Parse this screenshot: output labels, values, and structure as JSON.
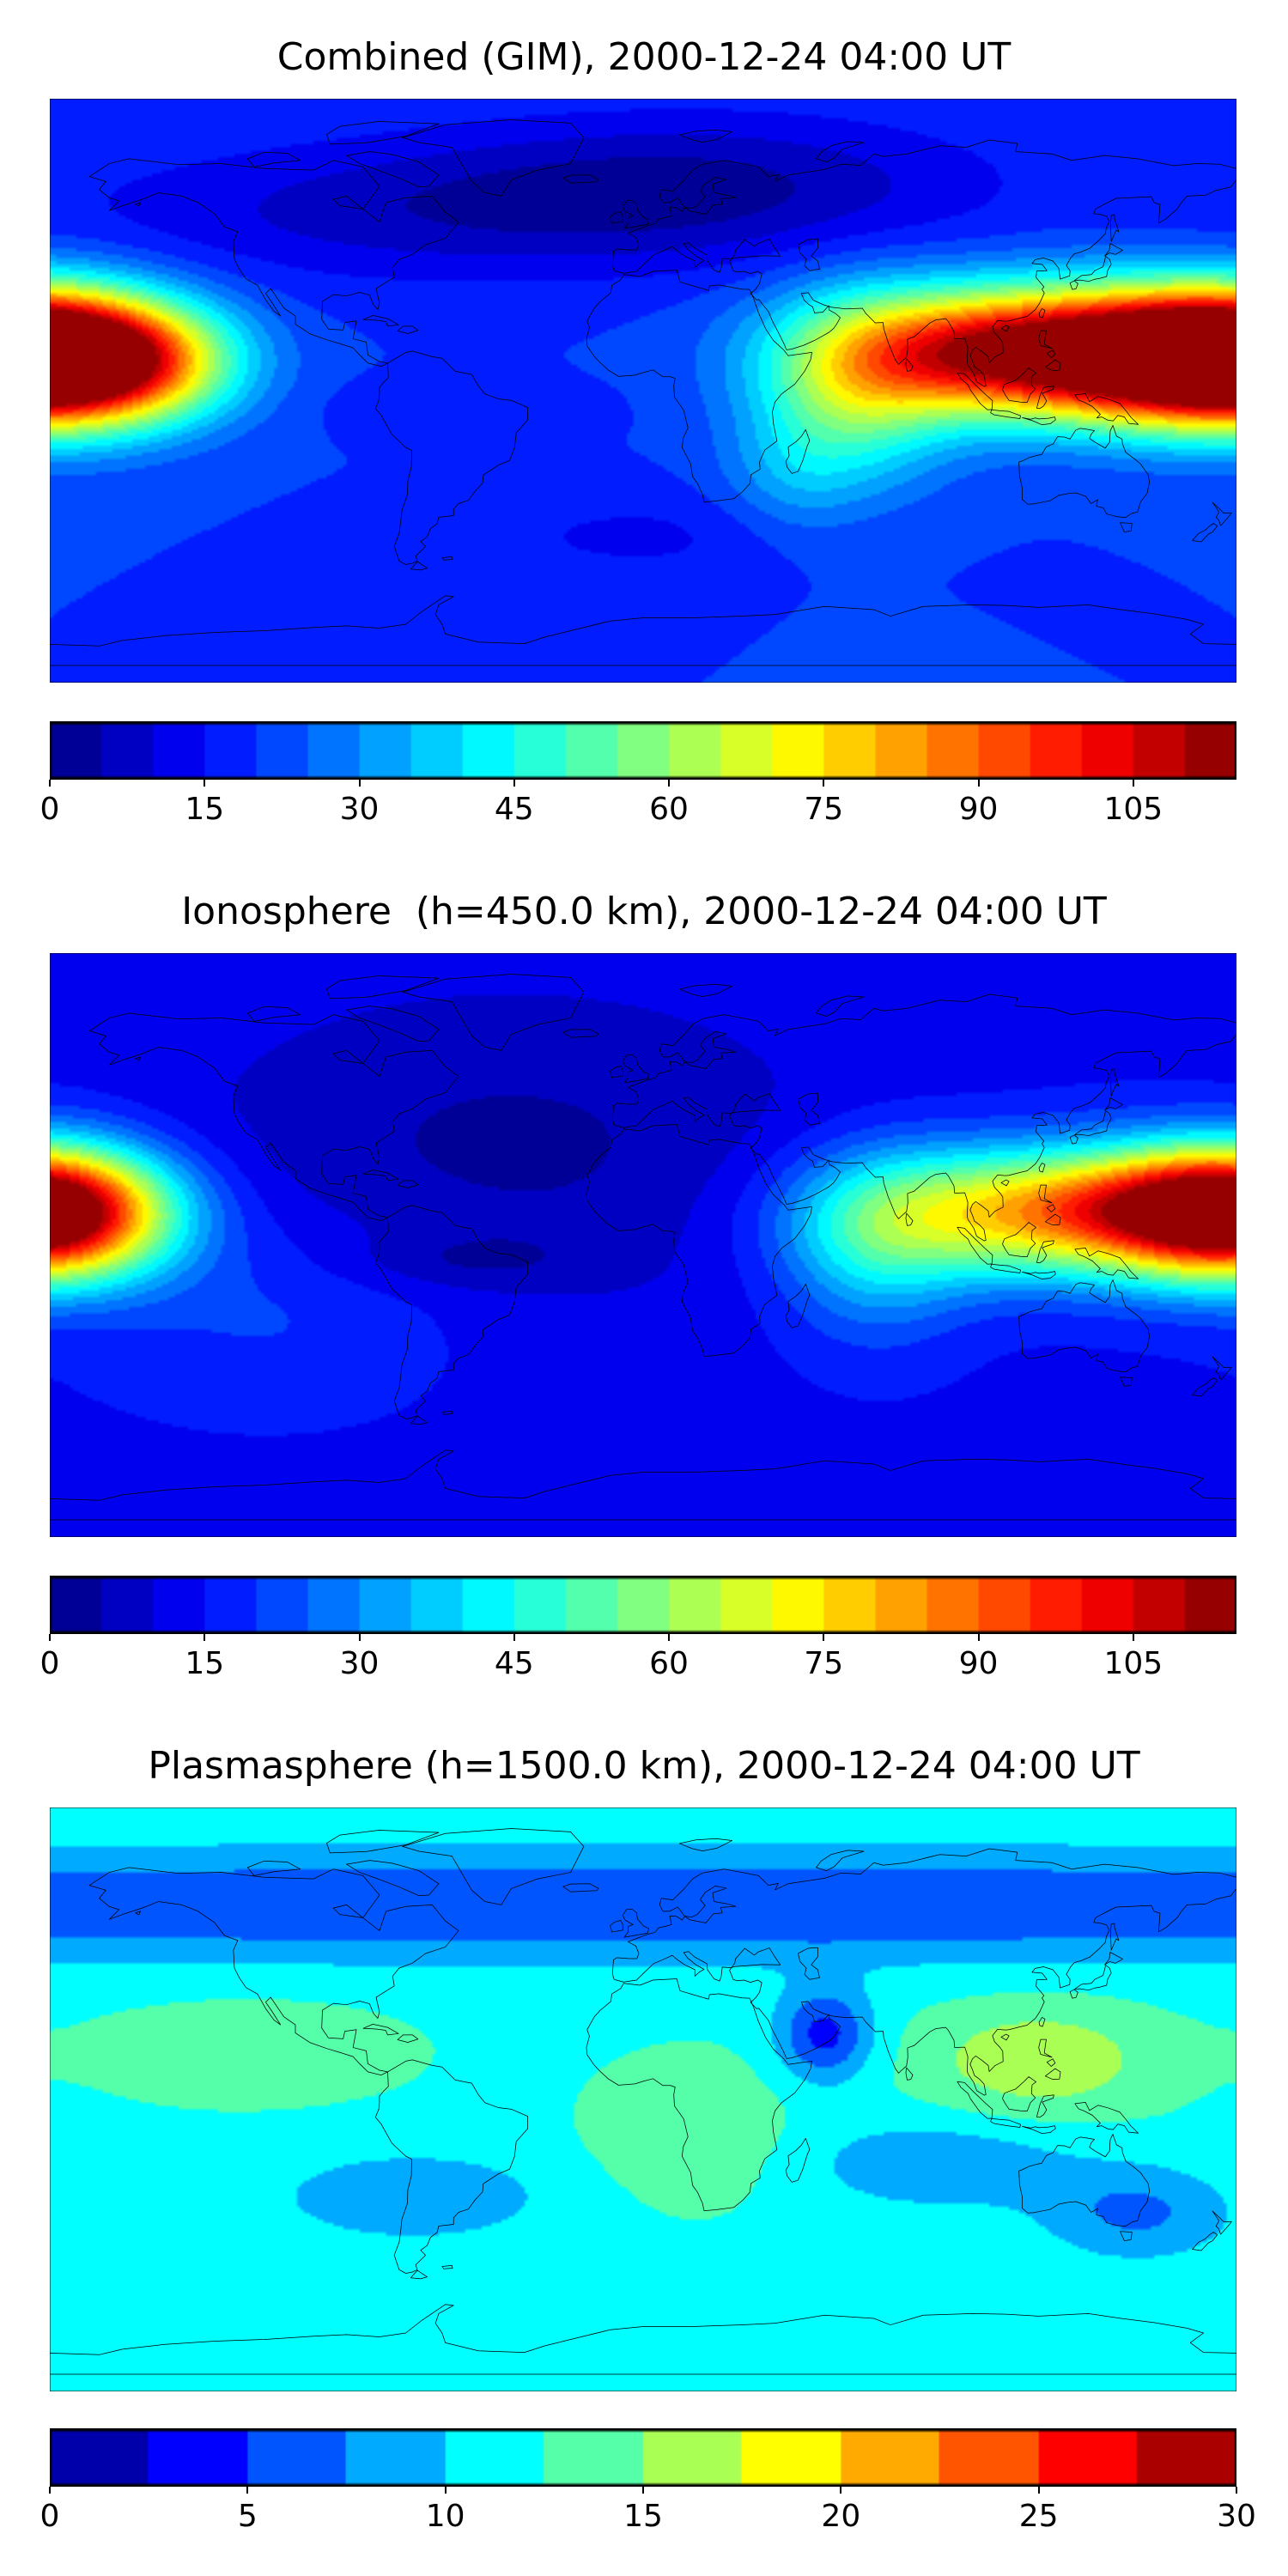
{
  "chart_data": [
    {
      "type": "heatmap",
      "title": "Combined (GIM), 2000-12-24 04:00 UT",
      "colorbar": {
        "ticks": [
          "0",
          "15",
          "30",
          "45",
          "60",
          "75",
          "90",
          "105"
        ],
        "levels": [
          0,
          5,
          10,
          15,
          20,
          25,
          30,
          35,
          40,
          45,
          50,
          55,
          60,
          65,
          70,
          75,
          80,
          85,
          90,
          95,
          100,
          105,
          110,
          115
        ],
        "range": [
          0,
          115
        ]
      },
      "colormap": "jet",
      "background_value": 20,
      "features": [
        {
          "lon": 120,
          "lat": 12,
          "lon_width": 42,
          "lat_width": 14,
          "value": 82,
          "desc": "maximum over Southeast Asia / western Pacific"
        },
        {
          "lon": 145,
          "lat": 10,
          "lon_width": 35,
          "lat_width": 12,
          "value": 20
        },
        {
          "lon": 100,
          "lat": 12,
          "lon_width": 25,
          "lat_width": 10,
          "value": 10
        },
        {
          "lon": -180,
          "lat": 10,
          "lon_width": 28,
          "lat_width": 14,
          "value": 58,
          "desc": "maximum at dateline"
        },
        {
          "lon": 180,
          "lat": 10,
          "lon_width": 28,
          "lat_width": 14,
          "value": 58
        },
        {
          "lon": -150,
          "lat": 8,
          "lon_width": 20,
          "lat_width": 12,
          "value": 22
        },
        {
          "lon": 65,
          "lat": 0,
          "lon_width": 20,
          "lat_width": 20,
          "value": 30
        },
        {
          "lon": 45,
          "lat": -25,
          "lon_width": 15,
          "lat_width": 15,
          "value": 10
        },
        {
          "lon": -55,
          "lat": -5,
          "lon_width": 25,
          "lat_width": 6,
          "value": -5
        },
        {
          "lon": -60,
          "lat": 55,
          "lon_width": 80,
          "lat_width": 15,
          "value": -12
        },
        {
          "lon": 20,
          "lat": 65,
          "lon_width": 60,
          "lat_width": 15,
          "value": -12
        },
        {
          "lon": 0,
          "lat": -45,
          "lon_width": 40,
          "lat_width": 10,
          "value": -6
        }
      ]
    },
    {
      "type": "heatmap",
      "title": "Ionosphere  (h=450.0 km), 2000-12-24 04:00 UT",
      "colorbar": {
        "ticks": [
          "0",
          "15",
          "30",
          "45",
          "60",
          "75",
          "90",
          "105"
        ],
        "levels": [
          0,
          5,
          10,
          15,
          20,
          25,
          30,
          35,
          40,
          45,
          50,
          55,
          60,
          65,
          70,
          75,
          80,
          85,
          90,
          95,
          100,
          105,
          110,
          115
        ],
        "range": [
          0,
          115
        ]
      },
      "colormap": "jet",
      "background_value": 14,
      "features": [
        {
          "lon": 120,
          "lat": 10,
          "lon_width": 40,
          "lat_width": 14,
          "value": 62,
          "desc": "maximum over Southeast Asia"
        },
        {
          "lon": 150,
          "lat": 12,
          "lon_width": 25,
          "lat_width": 10,
          "value": 15
        },
        {
          "lon": -180,
          "lat": 10,
          "lon_width": 25,
          "lat_width": 14,
          "value": 52
        },
        {
          "lon": 180,
          "lat": 10,
          "lon_width": 25,
          "lat_width": 14,
          "value": 52
        },
        {
          "lon": 70,
          "lat": 0,
          "lon_width": 20,
          "lat_width": 20,
          "value": 22
        },
        {
          "lon": -40,
          "lat": 30,
          "lon_width": 70,
          "lat_width": 35,
          "value": -10
        },
        {
          "lon": -55,
          "lat": -5,
          "lon_width": 25,
          "lat_width": 6,
          "value": -6
        },
        {
          "lon": -110,
          "lat": -20,
          "lon_width": 40,
          "lat_width": 20,
          "value": 8
        }
      ]
    },
    {
      "type": "heatmap",
      "title": "Plasmasphere (h=1500.0 km), 2000-12-24 04:00 UT",
      "colorbar": {
        "ticks": [
          "0",
          "5",
          "10",
          "15",
          "20",
          "25",
          "30"
        ],
        "levels": [
          0,
          2.5,
          5,
          7.5,
          10,
          12.5,
          15,
          17.5,
          20,
          22.5,
          25,
          27.5,
          30
        ],
        "range": [
          0,
          30
        ]
      },
      "colormap": "jet",
      "background_value": 12,
      "features": [
        {
          "lon": 0,
          "lat": 60,
          "lon_width": 360,
          "lat_width": 12,
          "value": -7,
          "desc": "low values at high northern latitudes"
        },
        {
          "lon": 0,
          "lat": -70,
          "lon_width": 360,
          "lat_width": 8,
          "value": -2
        },
        {
          "lon": 120,
          "lat": 12,
          "lon_width": 25,
          "lat_width": 12,
          "value": 5
        },
        {
          "lon": -120,
          "lat": 15,
          "lon_width": 30,
          "lat_width": 10,
          "value": 3
        },
        {
          "lon": 15,
          "lat": -10,
          "lon_width": 20,
          "lat_width": 15,
          "value": 3
        },
        {
          "lon": 55,
          "lat": 20,
          "lon_width": 10,
          "lat_width": 10,
          "value": -8,
          "desc": "local minimum over Arabian Sea"
        },
        {
          "lon": 90,
          "lat": -20,
          "lon_width": 30,
          "lat_width": 10,
          "value": -4
        },
        {
          "lon": -70,
          "lat": -30,
          "lon_width": 30,
          "lat_width": 10,
          "value": -4
        },
        {
          "lon": 150,
          "lat": -35,
          "lon_width": 20,
          "lat_width": 10,
          "value": -5
        }
      ]
    }
  ]
}
